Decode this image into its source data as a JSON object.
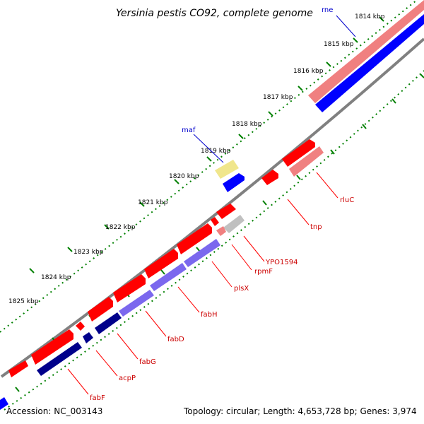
{
  "title": "Yersinia pestis CO92, complete genome",
  "footer": {
    "accession": "Accession: NC_003143",
    "summary": "Topology: circular; Length: 4,653,728 bp; Genes: 3,974"
  },
  "ticks": [
    "1814 kbp",
    "1815 kbp",
    "1816 kbp",
    "1817 kbp",
    "1818 kbp",
    "1819 kbp",
    "1820 kbp",
    "1821 kbp",
    "1822 kbp",
    "1823 kbp",
    "1824 kbp",
    "1825 kbp"
  ],
  "gene_labels": {
    "rne": "rne",
    "maf": "maf",
    "rluC": "rluC",
    "tnp": "tnp",
    "YPO1594": "YPO1594",
    "rpmF": "rpmF",
    "plsX": "plsX",
    "fabH": "fabH",
    "fabD": "fabD",
    "fabG": "fabG",
    "acpP": "acpP",
    "fabF": "fabF"
  },
  "colors": {
    "forward_gene": "#ff0000",
    "forward_gene_light": "#f08080",
    "reverse_gene": "#0000ff",
    "reverse_gene_light": "#7b68ee",
    "reverse_gene_dark": "#00008b",
    "label_line_forward": "#ff0000",
    "label_line_reverse": "#0000cc",
    "ruler": "#008000",
    "backbone": "#808080"
  }
}
